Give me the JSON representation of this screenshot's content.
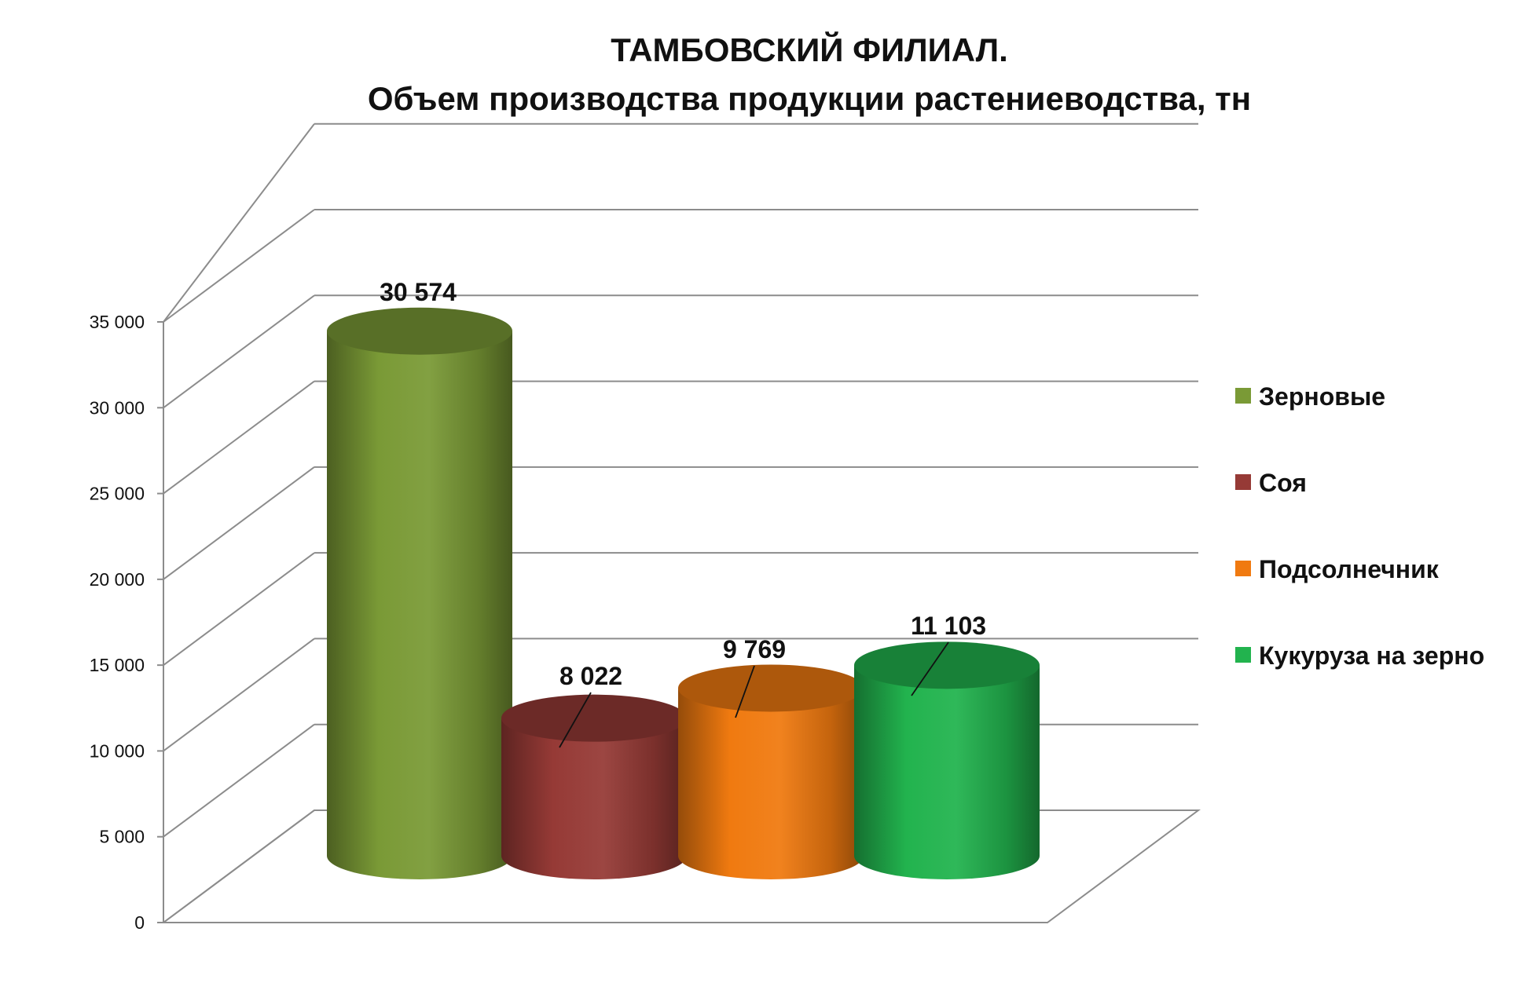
{
  "chart_data": {
    "type": "bar",
    "style": "3d-cylinder",
    "title": "ТАМБОВСКИЙ ФИЛИАЛ.",
    "subtitle": "Объем производства продукции растениеводства, тн",
    "categories": [
      "Зерновые",
      "Соя",
      "Подсолнечник",
      "Кукуруза на зерно"
    ],
    "values": [
      30574,
      8022,
      9769,
      11103
    ],
    "value_labels": [
      "30 574",
      "8 022",
      "9 769",
      "11 103"
    ],
    "colors": [
      "#7a9a36",
      "#963a36",
      "#f07a10",
      "#22b34e"
    ],
    "ylim": [
      0,
      35000
    ],
    "y_ticks": [
      0,
      5000,
      10000,
      15000,
      20000,
      25000,
      30000,
      35000
    ],
    "y_tick_labels": [
      "0",
      "5 000",
      "10 000",
      "15 000",
      "20 000",
      "25 000",
      "30 000",
      "35 000"
    ],
    "grid": true,
    "legend_position": "right"
  }
}
